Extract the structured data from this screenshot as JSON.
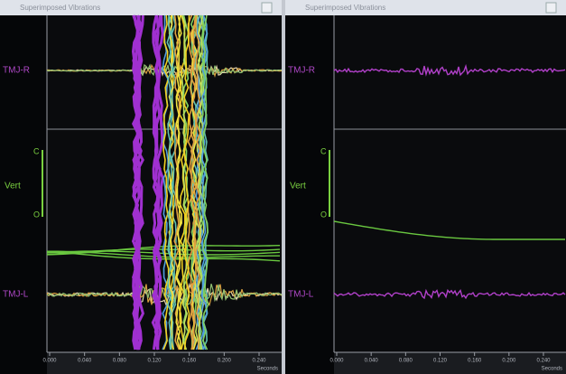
{
  "panels": [
    {
      "title": "Superimposed Vibrations",
      "channels": [
        "TMJ-R",
        "Vert",
        "TMJ-L"
      ],
      "scale_marks": [
        "C",
        "O"
      ],
      "x_axis": {
        "ticks": [
          "0.000",
          "0.040",
          "0.080",
          "0.120",
          "0.160",
          "0.200",
          "0.240"
        ],
        "unit": "Seconds"
      }
    },
    {
      "title": "Superimposed Vibrations",
      "channels": [
        "TMJ-R",
        "Vert",
        "TMJ-L"
      ],
      "scale_marks": [
        "C",
        "O"
      ],
      "x_axis": {
        "ticks": [
          "0.000",
          "0.040",
          "0.080",
          "0.120",
          "0.160",
          "0.200",
          "0.240"
        ],
        "unit": "Seconds"
      }
    }
  ]
}
